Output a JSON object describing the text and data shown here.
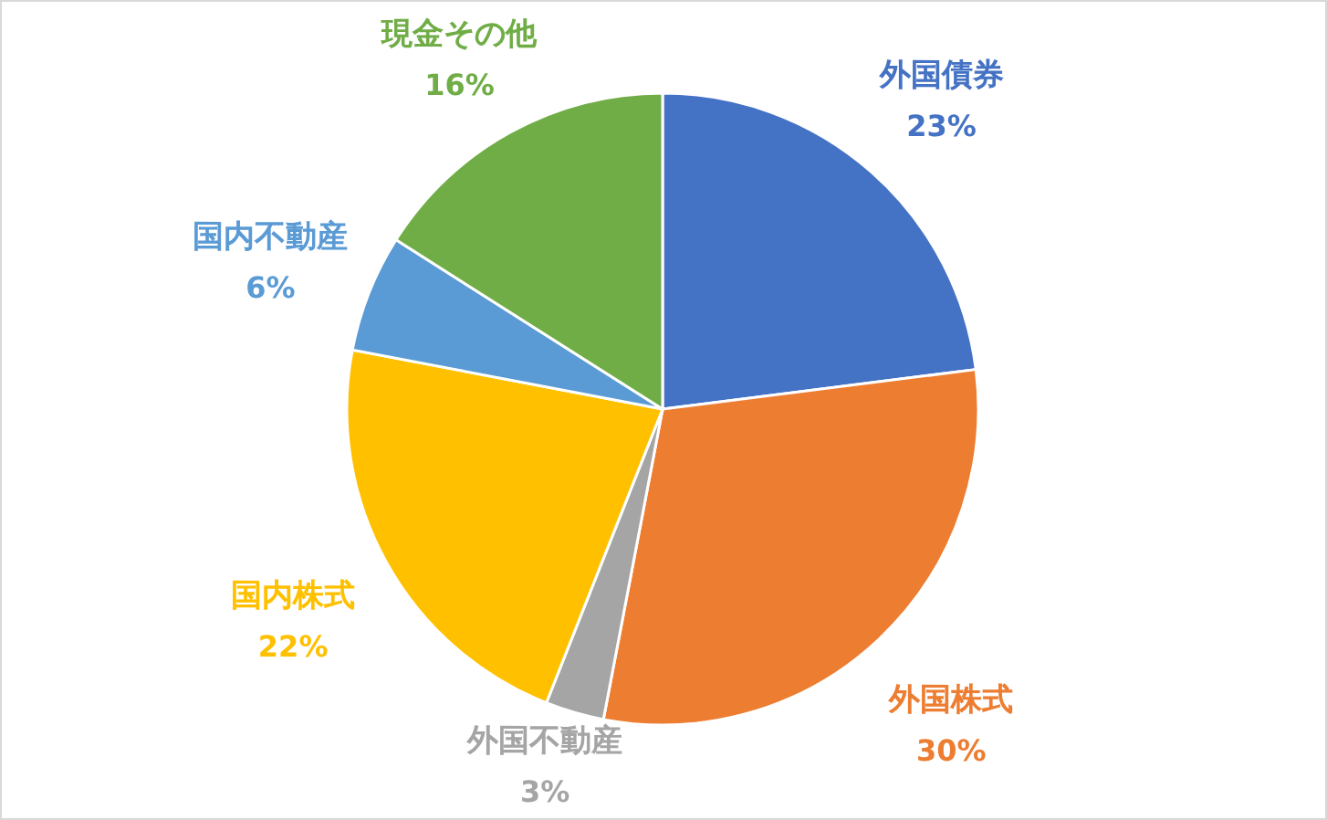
{
  "chart_data": {
    "type": "pie",
    "categories": [
      "外国債券",
      "外国株式",
      "外国不動産",
      "国内株式",
      "国内不動産",
      "現金その他"
    ],
    "values": [
      23,
      30,
      3,
      22,
      6,
      16
    ],
    "colors": [
      "#4472c4",
      "#ed7d31",
      "#a5a5a5",
      "#ffc000",
      "#5b9bd5",
      "#70ad47"
    ],
    "value_labels": [
      "23%",
      "30%",
      "3%",
      "22%",
      "6%",
      "16%"
    ]
  }
}
